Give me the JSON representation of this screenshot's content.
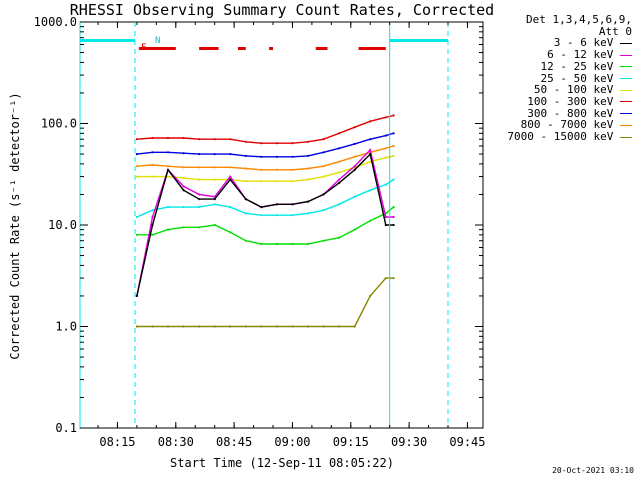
{
  "title": "RHESSI Observing Summary Count Rates, Corrected",
  "footer_timestamp": "20-Oct-2021 03:10",
  "legend_header": [
    "Det 1,3,4,5,6,9,",
    "Att 0"
  ],
  "flag_labels": {
    "f": "F",
    "n": "N"
  },
  "chart_data": {
    "type": "line",
    "title": "RHESSI Observing Summary Count Rates, Corrected",
    "xlabel": "Start Time (12-Sep-11 08:05:22)",
    "ylabel": "Corrected Count Rate (s⁻¹ detector⁻¹)",
    "y_scale": "log",
    "ylim": [
      0.1,
      1000.0
    ],
    "xlim": [
      "08:05:22",
      "09:49:00"
    ],
    "x_ticks": [
      "08:15",
      "08:30",
      "08:45",
      "09:00",
      "09:15",
      "09:30",
      "09:45"
    ],
    "y_ticks": [
      "0.1",
      "1.0",
      "10.0",
      "100.0",
      "1000.0"
    ],
    "grid": false,
    "legend_position": "top-right",
    "x": [
      "08:20",
      "08:24",
      "08:28",
      "08:32",
      "08:36",
      "08:40",
      "08:44",
      "08:48",
      "08:52",
      "08:56",
      "09:00",
      "09:04",
      "09:08",
      "09:12",
      "09:16",
      "09:20",
      "09:24",
      "09:26"
    ],
    "series": [
      {
        "name": "3 - 6 keV",
        "color": "#000000",
        "values": [
          2,
          10,
          35,
          22,
          18,
          18,
          28,
          18,
          15,
          16,
          16,
          17,
          20,
          26,
          35,
          50,
          10,
          10
        ]
      },
      {
        "name": "6 - 12 keV",
        "color": "#e000e0",
        "values": [
          2,
          12,
          35,
          24,
          20,
          19,
          30,
          18,
          15,
          16,
          16,
          17,
          20,
          28,
          38,
          55,
          12,
          12
        ]
      },
      {
        "name": "12 - 25 keV",
        "color": "#00e000",
        "values": [
          8,
          8,
          9,
          9.5,
          9.5,
          10,
          8.5,
          7,
          6.5,
          6.5,
          6.5,
          6.5,
          7,
          7.5,
          9,
          11,
          13,
          15
        ]
      },
      {
        "name": "25 - 50 keV",
        "color": "#00e8e8",
        "values": [
          12,
          14,
          15,
          15,
          15,
          16,
          15,
          13,
          12.5,
          12.5,
          12.5,
          13,
          14,
          16,
          19,
          22,
          25,
          28
        ]
      },
      {
        "name": "50 - 100 keV",
        "color": "#e0e000",
        "values": [
          30,
          30,
          30,
          29,
          28,
          28,
          28,
          27,
          27,
          27,
          27,
          28,
          30,
          33,
          37,
          42,
          46,
          48
        ]
      },
      {
        "name": "100 - 300 keV",
        "color": "#e00000",
        "values": [
          70,
          72,
          72,
          72,
          70,
          70,
          70,
          66,
          64,
          64,
          64,
          66,
          70,
          80,
          92,
          105,
          115,
          120
        ]
      },
      {
        "name": "300 - 800 keV",
        "color": "#0000e0",
        "values": [
          50,
          52,
          52,
          51,
          50,
          50,
          50,
          48,
          47,
          47,
          47,
          48,
          52,
          57,
          63,
          70,
          76,
          80
        ]
      },
      {
        "name": "800 - 7000 keV",
        "color": "#ff8800",
        "values": [
          38,
          39,
          38,
          37,
          37,
          37,
          37,
          36,
          35,
          35,
          35,
          36,
          38,
          42,
          47,
          52,
          57,
          60
        ]
      },
      {
        "name": "7000 - 15000 keV",
        "color": "#888800",
        "values": [
          1.0,
          1.0,
          1.0,
          1.0,
          1.0,
          1.0,
          1.0,
          1.0,
          1.0,
          1.0,
          1.0,
          1.0,
          1.0,
          1.0,
          1.0,
          2.0,
          3.0,
          3.0
        ]
      }
    ],
    "solid_vertical_lines": [
      "08:05:22",
      "09:25:00"
    ],
    "dashed_vertical_lines": [
      "08:19:30",
      "09:40:00"
    ],
    "status_bars": [
      {
        "color": "#00e8e8",
        "start": "08:05:22",
        "end": "08:19:30"
      },
      {
        "color": "#00e8e8",
        "start": "09:25:00",
        "end": "09:40:00"
      }
    ],
    "flare_segments": [
      {
        "color": "#e00000",
        "start": "08:20:30",
        "end": "08:30:00"
      },
      {
        "color": "#e00000",
        "start": "08:36:00",
        "end": "08:41:00"
      },
      {
        "color": "#e00000",
        "start": "08:46:00",
        "end": "08:48:00"
      },
      {
        "color": "#e00000",
        "start": "08:54:00",
        "end": "08:55:00"
      },
      {
        "color": "#e00000",
        "start": "09:06:00",
        "end": "09:09:00"
      },
      {
        "color": "#e00000",
        "start": "09:17:00",
        "end": "09:24:00"
      }
    ]
  }
}
